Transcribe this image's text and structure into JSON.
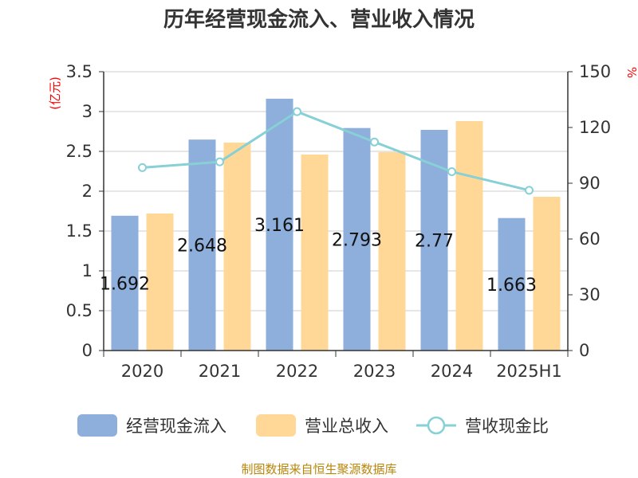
{
  "chart_data": {
    "type": "bar",
    "title": "历年经营现金流入、营业收入情况",
    "categories": [
      "2020",
      "2021",
      "2022",
      "2023",
      "2024",
      "2025H1"
    ],
    "series": [
      {
        "name": "经营现金流入",
        "kind": "bar",
        "axis": "left",
        "color": "#8eaedb",
        "values": [
          1.692,
          2.648,
          3.161,
          2.793,
          2.77,
          1.663
        ],
        "labels": [
          "1.692",
          "2.648",
          "3.161",
          "2.793",
          "2.77",
          "1.663"
        ]
      },
      {
        "name": "营业总收入",
        "kind": "bar",
        "axis": "left",
        "color": "#ffd898",
        "values": [
          1.72,
          2.61,
          2.46,
          2.49,
          2.88,
          1.93
        ]
      },
      {
        "name": "营收现金比",
        "kind": "line",
        "axis": "right",
        "color": "#86d0d6",
        "values": [
          98.4,
          101.5,
          128.5,
          112.2,
          96.2,
          86.2
        ]
      }
    ],
    "y_left": {
      "unit": "(亿元)",
      "min": 0,
      "max": 3.5,
      "ticks": [
        "0",
        "0.5",
        "1",
        "1.5",
        "2",
        "2.5",
        "3",
        "3.5"
      ]
    },
    "y_right": {
      "unit": "%",
      "min": 0,
      "max": 150,
      "ticks": [
        "0",
        "30",
        "60",
        "90",
        "120",
        "150"
      ]
    },
    "grid": true,
    "legend": "bottom"
  },
  "source": "制图数据来自恒生聚源数据库"
}
